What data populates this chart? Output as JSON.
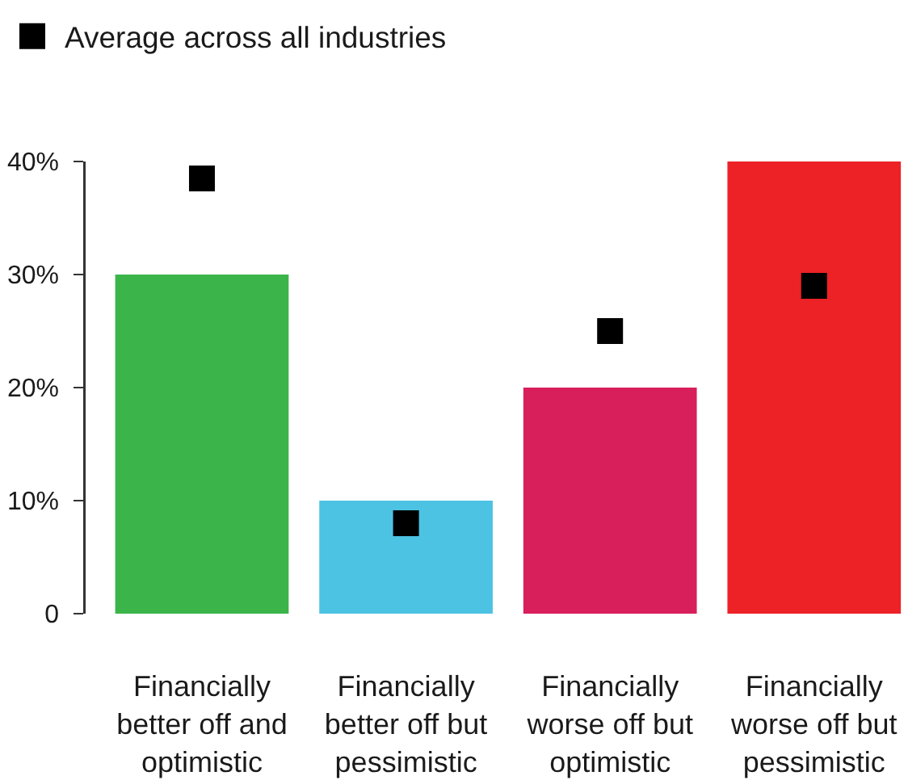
{
  "chart_data": {
    "type": "bar",
    "categories": [
      "Financially better off and optimistic",
      "Financially better off but pessimistic",
      "Financially worse off but optimistic",
      "Financially worse off but pessimistic"
    ],
    "series": [
      {
        "colors": [
          "#3bb54a",
          "#4dc3e3",
          "#d81f5b",
          "#ec2227"
        ],
        "values": [
          30,
          10,
          20,
          40
        ]
      },
      {
        "type": "scatter",
        "name": "Average across all industries",
        "color": "#000000",
        "x": [
          "Financially better off and optimistic",
          "Financially better off but pessimistic",
          "Financially worse off but optimistic",
          "Financially worse off but pessimistic"
        ],
        "values": [
          38.5,
          8,
          25,
          29
        ]
      }
    ],
    "ylim": [
      0,
      40
    ],
    "yticks": [
      0,
      {
        "value": 10,
        "label": "10%"
      },
      {
        "value": 20,
        "label": "20%"
      },
      {
        "value": 30,
        "label": "30%"
      },
      {
        "value": 40,
        "label": "40%"
      }
    ],
    "marker": "square",
    "legend": "top left"
  }
}
